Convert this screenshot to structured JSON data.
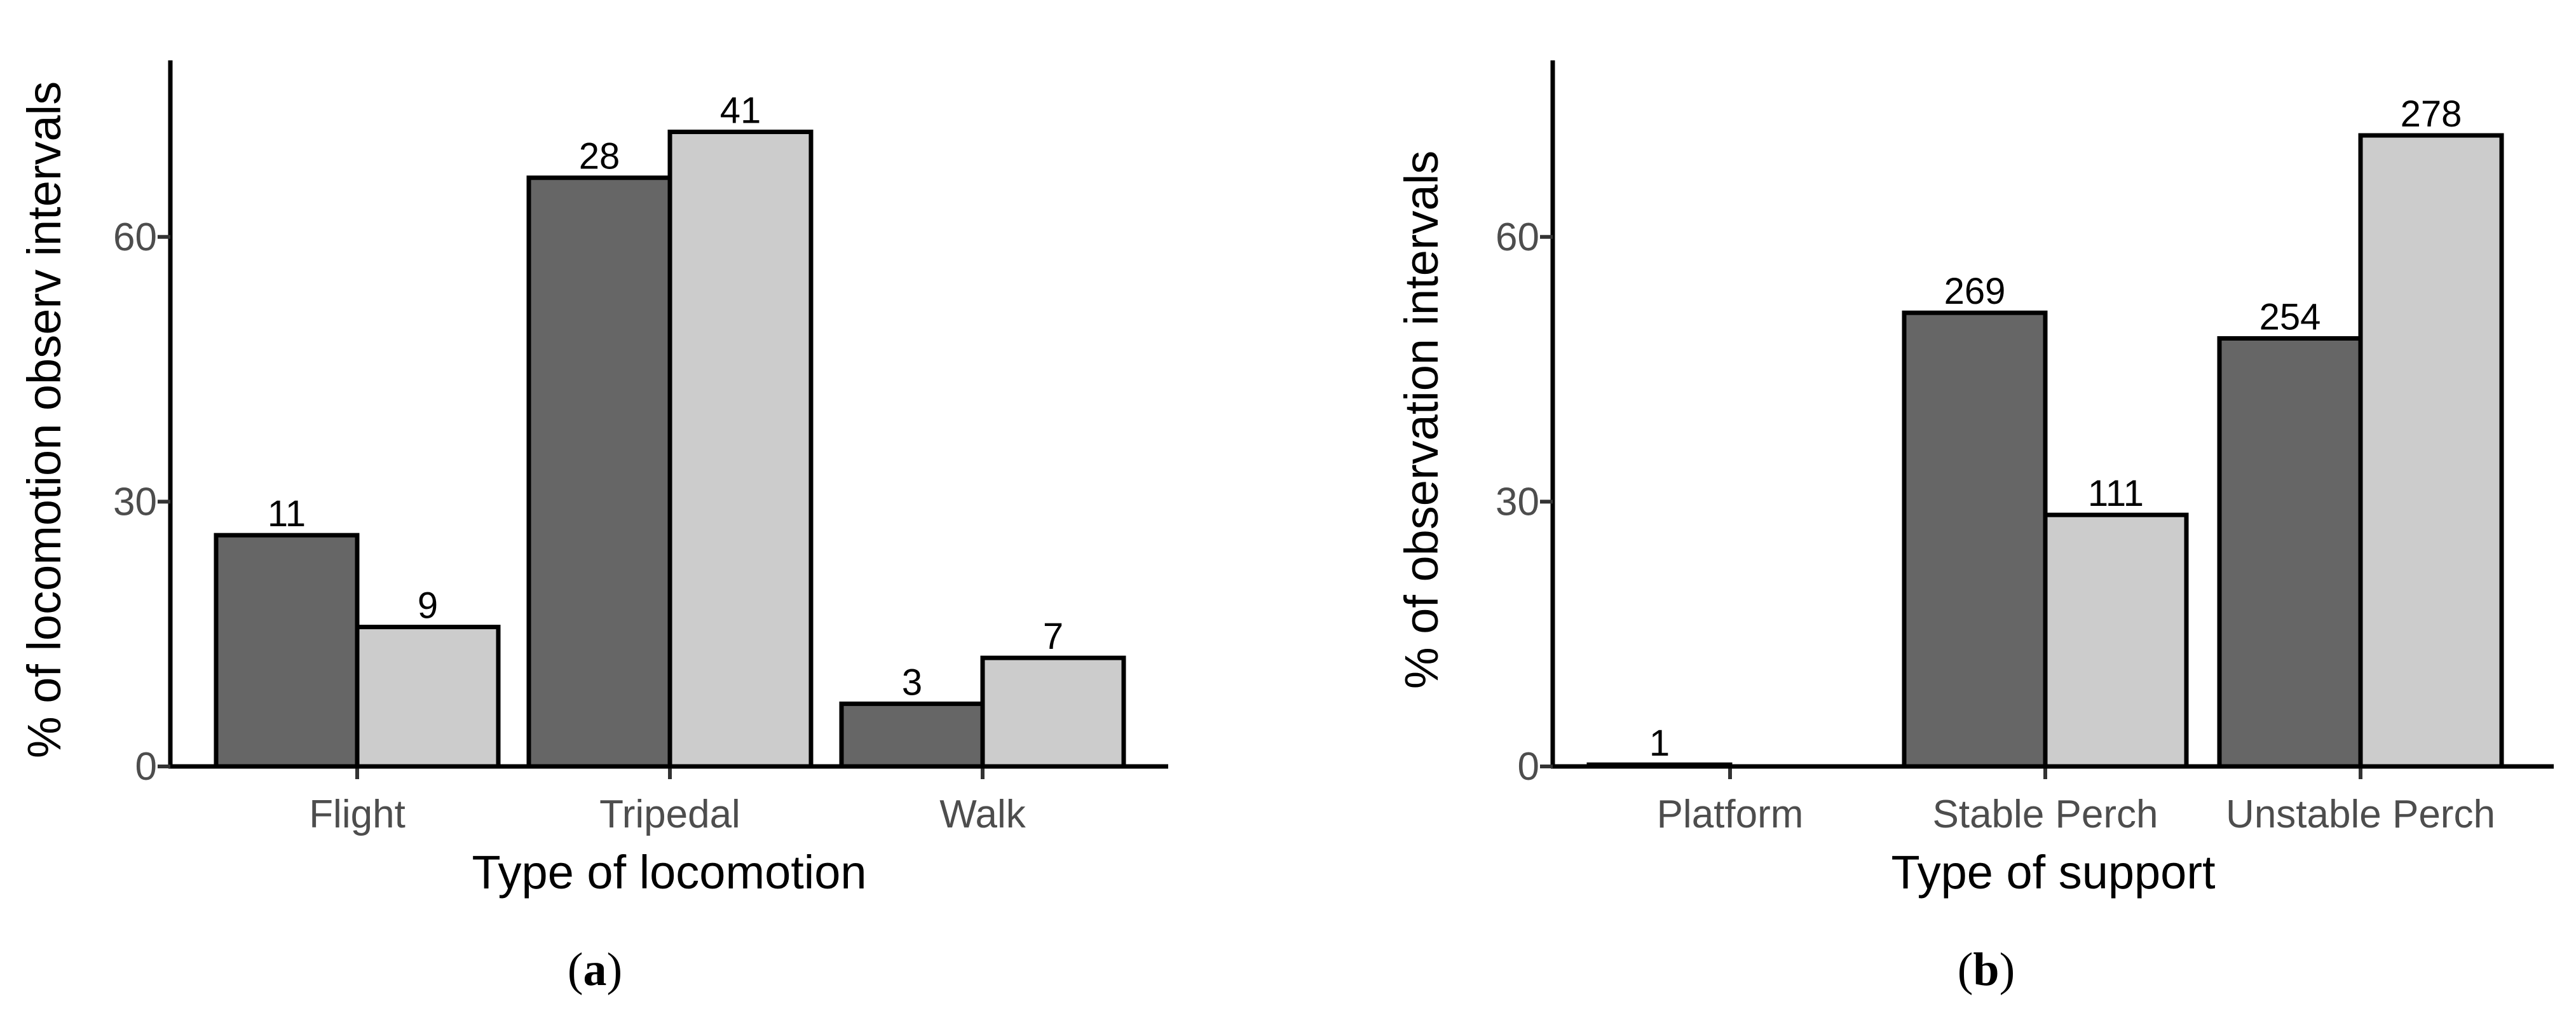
{
  "chart_data": [
    {
      "type": "bar",
      "panel_label": "a",
      "xlabel": "Type of locomotion",
      "ylabel": "% of locomotion observ intervals",
      "ylim": [
        0,
        80
      ],
      "yticks": [
        0,
        30,
        60
      ],
      "grid": false,
      "categories": [
        "Flight",
        "Tripedal",
        "Walk"
      ],
      "series": [
        {
          "color": "#666666",
          "values": [
            26.2,
            66.7,
            7.1
          ],
          "labels": [
            "11",
            "28",
            "3"
          ]
        },
        {
          "color": "#cccccc",
          "values": [
            15.8,
            71.9,
            12.3
          ],
          "labels": [
            "9",
            "41",
            "7"
          ]
        }
      ]
    },
    {
      "type": "bar",
      "panel_label": "b",
      "xlabel": "Type of support",
      "ylabel": "% of observation intervals",
      "ylim": [
        0,
        80
      ],
      "yticks": [
        0,
        30,
        60
      ],
      "grid": false,
      "categories": [
        "Platform",
        "Stable Perch",
        "Unstable Perch"
      ],
      "series": [
        {
          "color": "#666666",
          "values": [
            0.2,
            51.4,
            48.5
          ],
          "labels": [
            "1",
            "269",
            "254"
          ]
        },
        {
          "color": "#cccccc",
          "values": [
            0,
            28.5,
            71.5
          ],
          "labels": [
            "",
            "111",
            "278"
          ]
        }
      ]
    }
  ],
  "panel_label_wrap": [
    "(",
    ")"
  ]
}
